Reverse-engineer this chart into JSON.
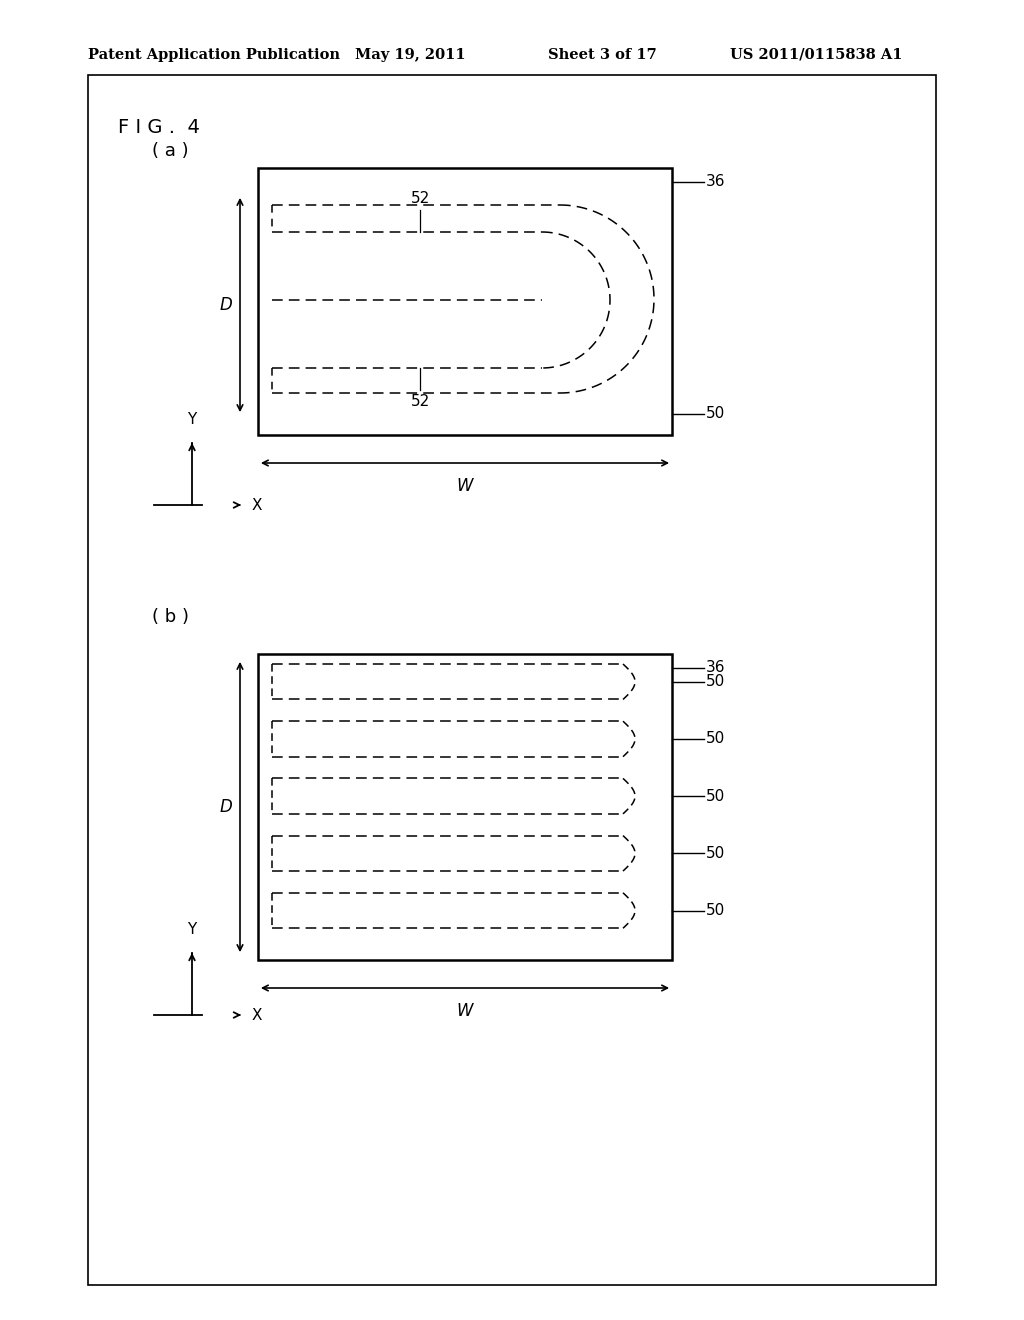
{
  "background_color": "#ffffff",
  "header_text": "Patent Application Publication",
  "header_date": "May 19, 2011",
  "header_sheet": "Sheet 3 of 17",
  "header_patent": "US 2011/0115838 A1",
  "fig_label": "F I G .  4",
  "panel_a_label": "( a )",
  "panel_b_label": "( b )",
  "label_36": "36",
  "label_50": "50",
  "label_52": "52",
  "label_D": "D",
  "label_W": "W",
  "label_X": "X",
  "label_Y": "Y"
}
